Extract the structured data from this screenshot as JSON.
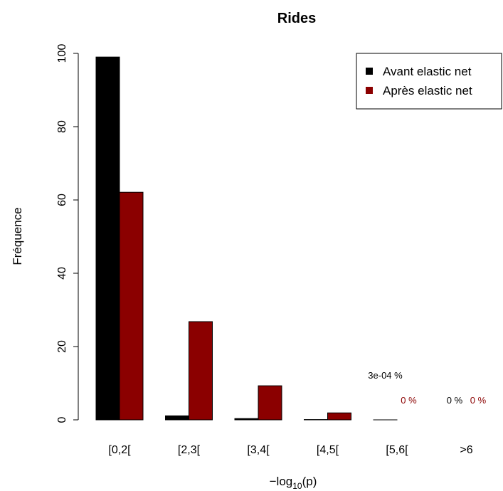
{
  "chart_data": {
    "type": "bar",
    "title": "Rides",
    "xlabel_prefix": "−log",
    "xlabel_sub": "10",
    "xlabel_suffix": "(p)",
    "ylabel": "Fréquence",
    "ylim": [
      0,
      100
    ],
    "yticks": [
      0,
      20,
      40,
      60,
      80,
      100
    ],
    "categories": [
      "[0,2[",
      "[2,3[",
      "[3,4[",
      "[4,5[",
      "[5,6[",
      ">6"
    ],
    "series": [
      {
        "name": "Avant elastic net",
        "color": "#000000",
        "values": [
          99,
          1.1,
          0.35,
          0.08,
          0.0003,
          0
        ]
      },
      {
        "name": "Après elastic net",
        "color": "#8b0000",
        "values": [
          62.1,
          26.8,
          9.3,
          1.9,
          0,
          0
        ]
      }
    ],
    "annotations": [
      {
        "category_index": 4,
        "series_index": 0,
        "text": "3e-04 %",
        "color": "#000000"
      },
      {
        "category_index": 4,
        "series_index": 1,
        "text": "0 %",
        "color": "#8b0000"
      },
      {
        "category_index": 5,
        "series_index": 0,
        "text": "0 %",
        "color": "#000000"
      },
      {
        "category_index": 5,
        "series_index": 1,
        "text": "0 %",
        "color": "#8b0000"
      }
    ],
    "legend_position": "top-right",
    "grid": false
  }
}
